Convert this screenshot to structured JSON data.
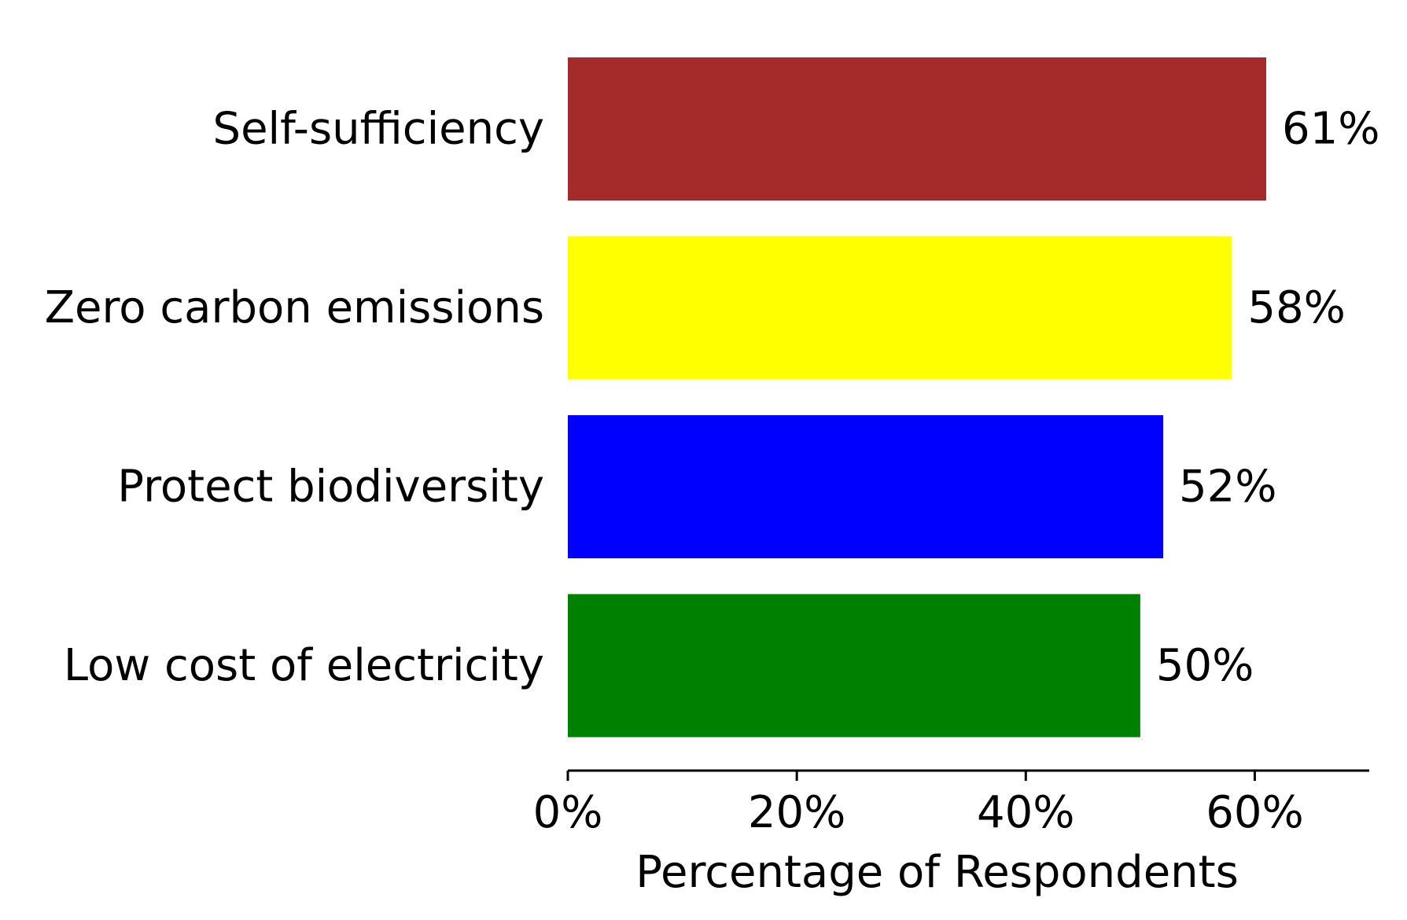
{
  "chart_data": {
    "type": "bar",
    "orientation": "horizontal",
    "categories": [
      "Self-sufficiency",
      "Zero carbon emissions",
      "Protect biodiversity",
      "Low cost of electricity"
    ],
    "values": [
      61,
      58,
      52,
      50
    ],
    "value_labels": [
      "61%",
      "58%",
      "52%",
      "50%"
    ],
    "colors": [
      "#a52a2a",
      "#ffff00",
      "#0000ff",
      "#008000"
    ],
    "xlabel": "Percentage of Respondents",
    "ylabel": "",
    "title": "",
    "xlim": [
      0,
      70
    ],
    "x_ticks": [
      0,
      20,
      40,
      60
    ],
    "x_tick_labels": [
      "0%",
      "20%",
      "40%",
      "60%"
    ],
    "grid": false,
    "legend": "none"
  }
}
